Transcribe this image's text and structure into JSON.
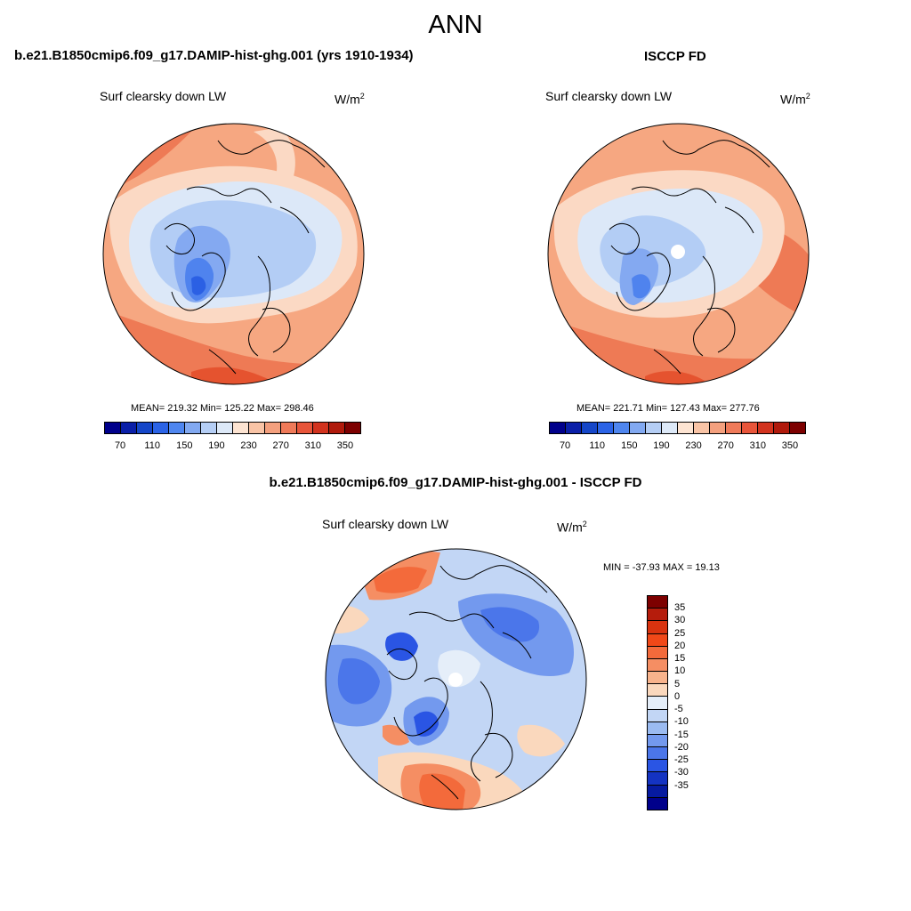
{
  "figure": {
    "title": "ANN",
    "panels": [
      {
        "title": "b.e21.B1850cmip6.f09_g17.DAMIP-hist-ghg.001 (yrs 1910-1934)",
        "variable": "Surf clearsky down LW",
        "unit_base": "W/m",
        "unit_exp": "2",
        "stats": "MEAN= 219.32  Min= 125.22  Max= 298.46"
      },
      {
        "title": "ISCCP FD",
        "variable": "Surf clearsky down LW",
        "unit_base": "W/m",
        "unit_exp": "2",
        "stats": "MEAN= 221.71  Min= 127.43  Max= 277.76"
      },
      {
        "title": "b.e21.B1850cmip6.f09_g17.DAMIP-hist-ghg.001 - ISCCP FD",
        "variable": "Surf clearsky down LW",
        "unit_base": "W/m",
        "unit_exp": "2",
        "stats": "MIN = -37.93 MAX =  19.13"
      }
    ]
  },
  "colorbars": {
    "absolute": {
      "colors": [
        "#00008b",
        "#0a1fa8",
        "#1546c8",
        "#2b63e6",
        "#4f86ef",
        "#82a9f1",
        "#b5cef5",
        "#dde9f8",
        "#fde4d2",
        "#f9c4a6",
        "#f4a07e",
        "#ef7a59",
        "#e8553a",
        "#d2331e",
        "#b01a0c",
        "#7d0000"
      ],
      "tick_labels": [
        "70",
        "110",
        "150",
        "190",
        "230",
        "270",
        "310",
        "350"
      ]
    },
    "difference": {
      "colors": [
        "#7d0000",
        "#b51c0c",
        "#d9330f",
        "#f04818",
        "#f36a3b",
        "#f58e63",
        "#f8b38c",
        "#fad8bd",
        "#e5eef9",
        "#c2d6f5",
        "#9bbbf1",
        "#7399ee",
        "#4b76ea",
        "#2a55e4",
        "#1433c2",
        "#061aa0",
        "#00008b"
      ],
      "tick_labels": [
        "35",
        "30",
        "25",
        "20",
        "15",
        "10",
        "5",
        "0",
        "-5",
        "-10",
        "-15",
        "-20",
        "-25",
        "-30",
        "-35"
      ]
    }
  }
}
